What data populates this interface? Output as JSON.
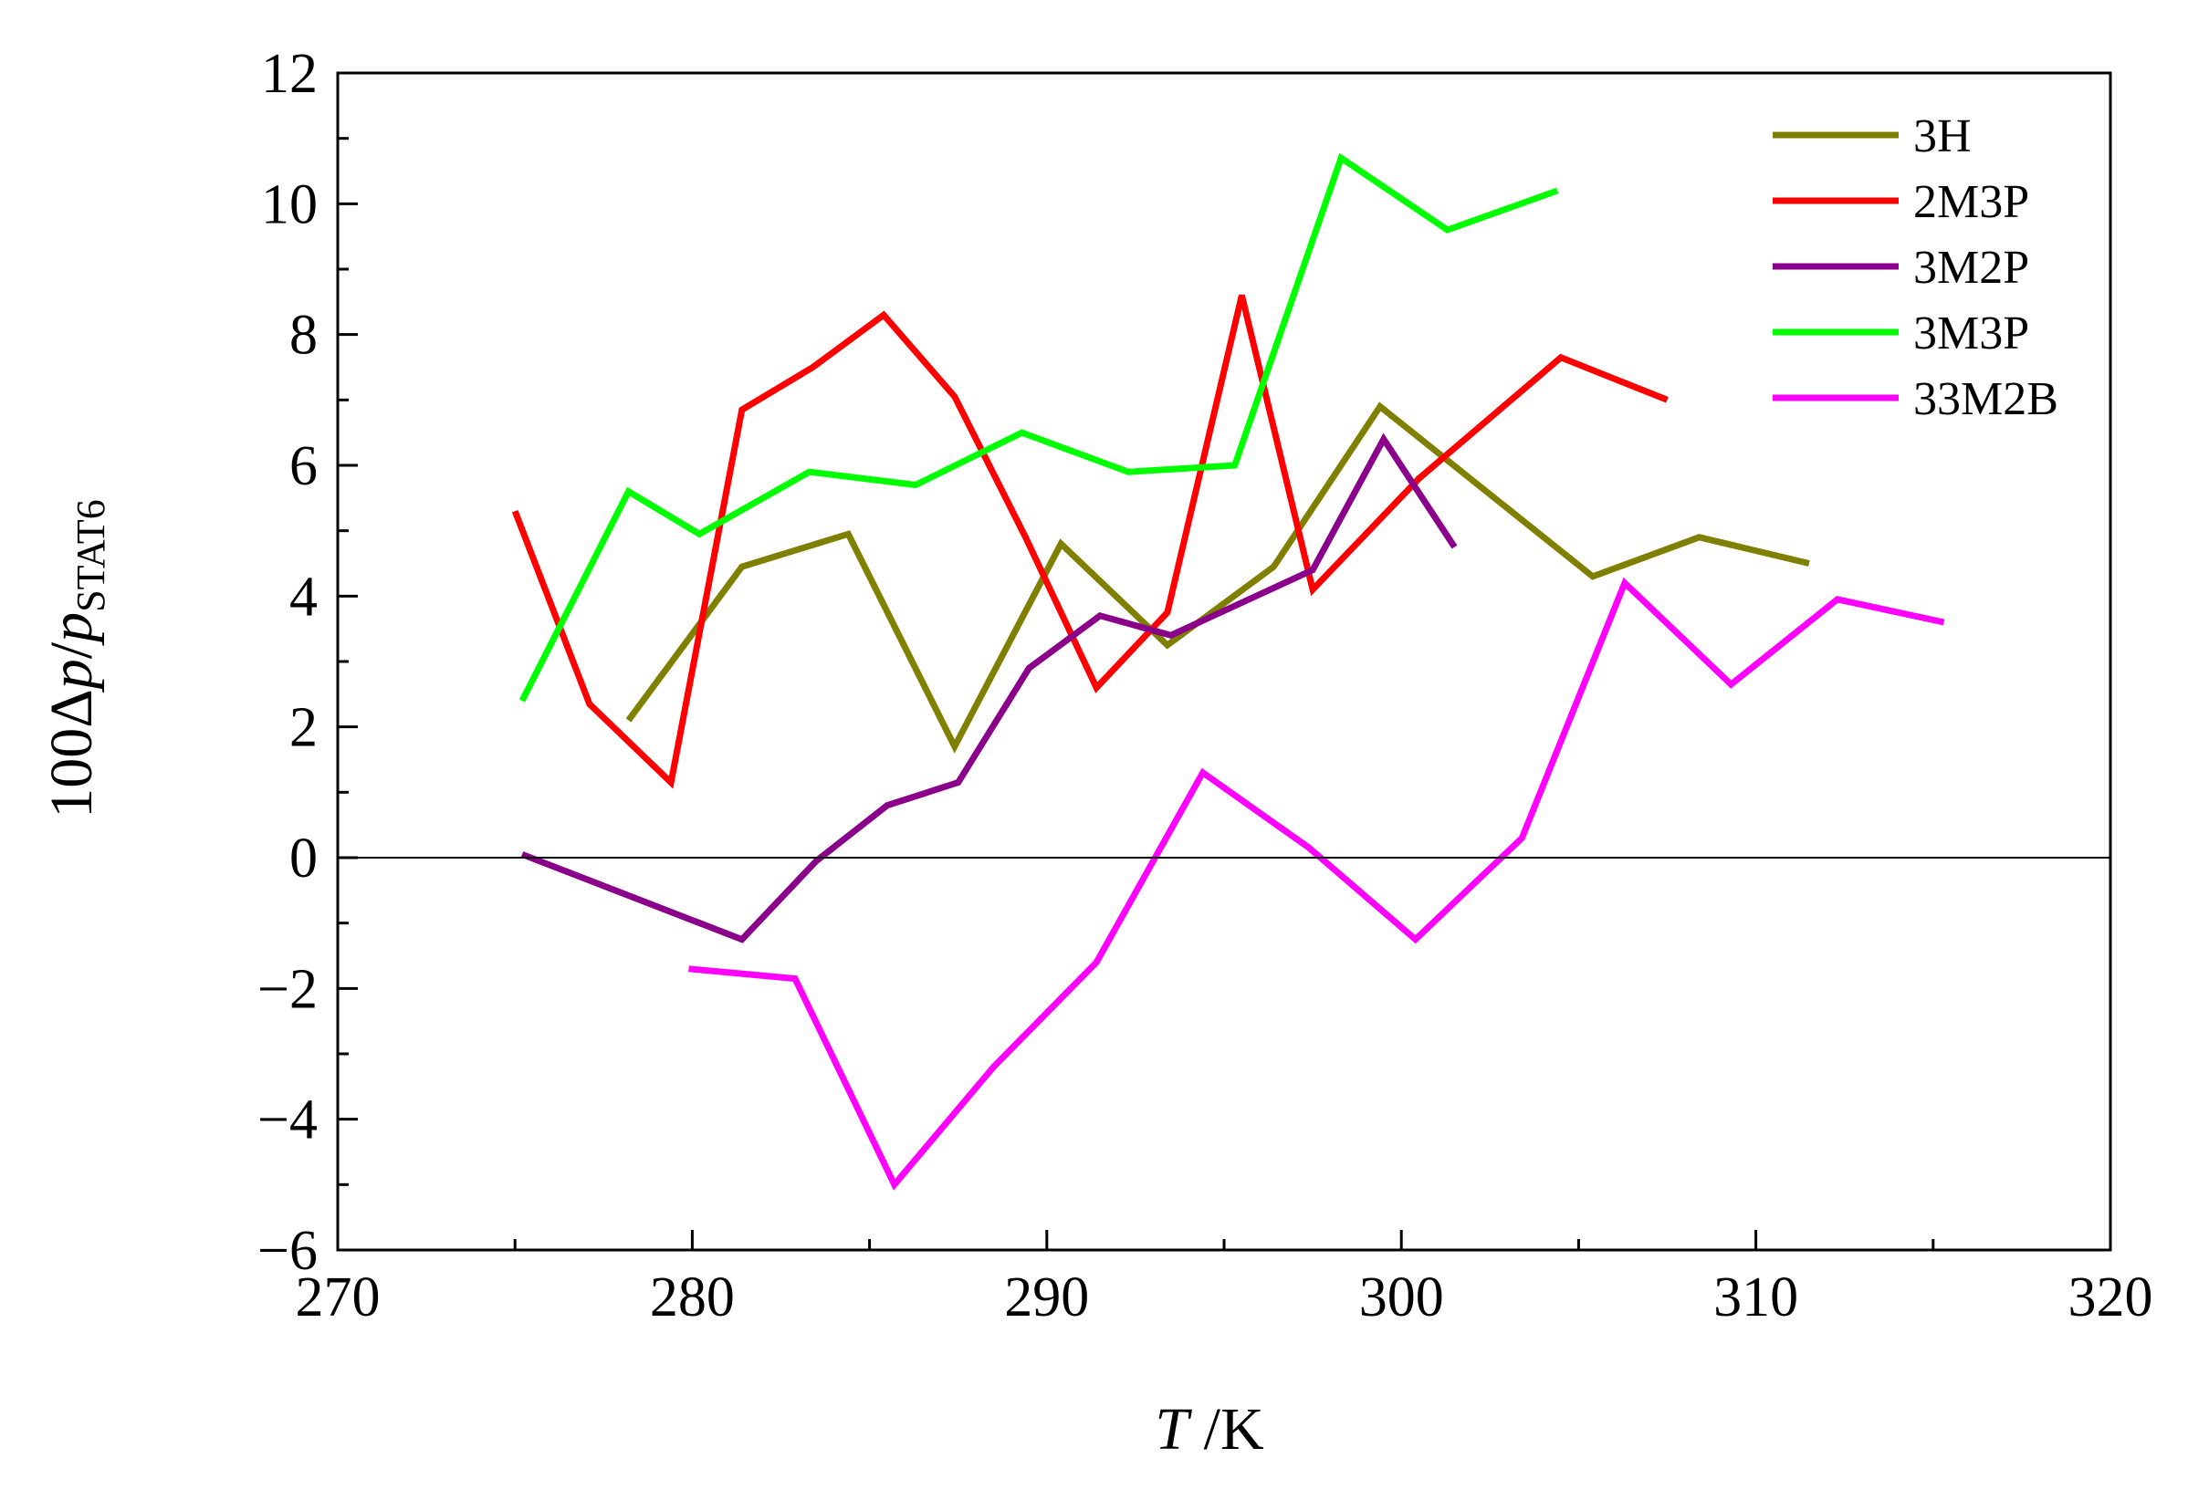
{
  "chart_data": {
    "type": "line",
    "title": "",
    "xlabel": {
      "var": "T",
      "unit": " /K"
    },
    "ylabel": {
      "prefix": "100Δ",
      "var1": "p",
      "slash": "/",
      "var2": "p",
      "sub": "STAT6"
    },
    "xlim": [
      270,
      320
    ],
    "ylim": [
      -6,
      12
    ],
    "xticks": [
      270,
      280,
      290,
      300,
      310,
      320
    ],
    "yticks": [
      -6,
      -4,
      -2,
      0,
      2,
      4,
      6,
      8,
      10,
      12
    ],
    "xtick_labels": [
      "270",
      "280",
      "290",
      "300",
      "310",
      "320"
    ],
    "ytick_labels": [
      "−6",
      "−4",
      "−2",
      "0",
      "2",
      "4",
      "6",
      "8",
      "10",
      "12"
    ],
    "zero_line": true,
    "grid": false,
    "legend_position": "top-right",
    "series": [
      {
        "name": "3H",
        "color": "#808000",
        "x": [
          278.2,
          281.4,
          284.4,
          287.4,
          290.4,
          293.4,
          296.4,
          299.4,
          302.4,
          305.4,
          308.4,
          311.5
        ],
        "y": [
          2.1,
          4.45,
          4.95,
          1.7,
          4.8,
          3.25,
          4.45,
          6.9,
          5.6,
          4.3,
          4.9,
          4.5
        ]
      },
      {
        "name": "2M3P",
        "color": "#ff0000",
        "x": [
          275.0,
          277.1,
          279.4,
          281.4,
          283.4,
          285.4,
          287.4,
          289.4,
          291.4,
          293.4,
          295.5,
          297.5,
          300.5,
          304.5,
          307.5
        ],
        "y": [
          5.3,
          2.35,
          1.15,
          6.85,
          7.5,
          8.3,
          7.05,
          4.9,
          2.6,
          3.75,
          8.6,
          4.1,
          5.8,
          7.65,
          7.0
        ]
      },
      {
        "name": "3M2P",
        "color": "#8b008b",
        "x": [
          275.2,
          281.4,
          283.5,
          285.5,
          287.5,
          289.5,
          291.5,
          293.5,
          295.5,
          297.5,
          299.5,
          301.5
        ],
        "y": [
          0.05,
          -1.25,
          -0.05,
          0.8,
          1.15,
          2.9,
          3.7,
          3.4,
          3.9,
          4.4,
          6.4,
          4.75
        ]
      },
      {
        "name": "3M3P",
        "color": "#00ff00",
        "x": [
          275.2,
          278.2,
          280.2,
          283.3,
          286.3,
          289.3,
          292.3,
          295.3,
          298.3,
          301.3,
          304.4
        ],
        "y": [
          2.4,
          5.6,
          4.95,
          5.9,
          5.7,
          6.5,
          5.9,
          6.0,
          10.7,
          9.6,
          10.2
        ]
      },
      {
        "name": "33M2B",
        "color": "#ff00ff",
        "x": [
          279.9,
          282.9,
          285.7,
          288.5,
          291.4,
          294.4,
          297.4,
          300.4,
          303.4,
          306.3,
          309.3,
          312.3,
          315.3
        ],
        "y": [
          -1.7,
          -1.85,
          -5.0,
          -3.2,
          -1.6,
          1.3,
          0.15,
          -1.25,
          0.3,
          4.2,
          2.65,
          3.95,
          3.6
        ]
      }
    ]
  }
}
